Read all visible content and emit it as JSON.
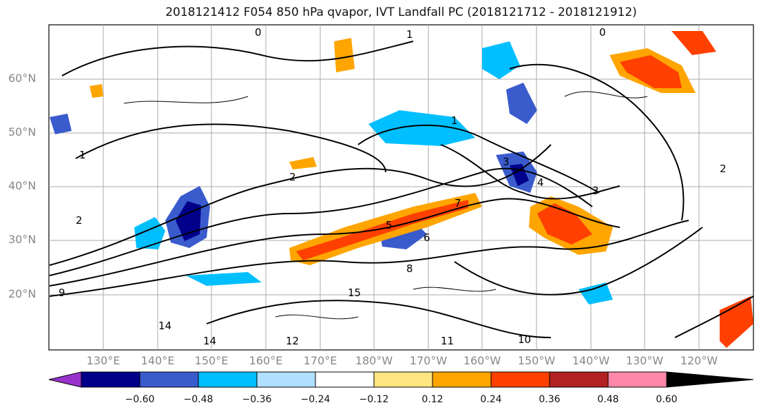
{
  "title": "2018121412 F054 850 hPa qvapor, IVT Landfall PC (2018121712 - 2018121912)",
  "lat_labels": [
    "60°N",
    "50°N",
    "40°N",
    "30°N",
    "20°N"
  ],
  "lon_labels": [
    "130°E",
    "140°E",
    "150°E",
    "160°E",
    "170°E",
    "180°W",
    "170°W",
    "160°W",
    "150°W",
    "140°W",
    "130°W",
    "120°W"
  ],
  "colorbar": {
    "colors": [
      "#9932cc",
      "#00008b",
      "#3a5bcc",
      "#00bfff",
      "#b0e0ff",
      "#ffffff",
      "#ffe680",
      "#ffa500",
      "#ff4000",
      "#b22222",
      "#ff88aa"
    ],
    "ticks": [
      "−0.60",
      "−0.48",
      "−0.36",
      "−0.24",
      "−0.12",
      "0.12",
      "0.24",
      "0.36",
      "0.48",
      "0.60"
    ]
  },
  "contour_labels": [
    "0",
    "0",
    "1",
    "1",
    "1",
    "2",
    "2",
    "2",
    "3",
    "3",
    "4",
    "5",
    "6",
    "7",
    "8",
    "9",
    "10",
    "11",
    "12",
    "14",
    "14",
    "15"
  ],
  "colors": {
    "grid": "#aaaaaa",
    "contour": "#000000",
    "tick_text": "#888888"
  }
}
